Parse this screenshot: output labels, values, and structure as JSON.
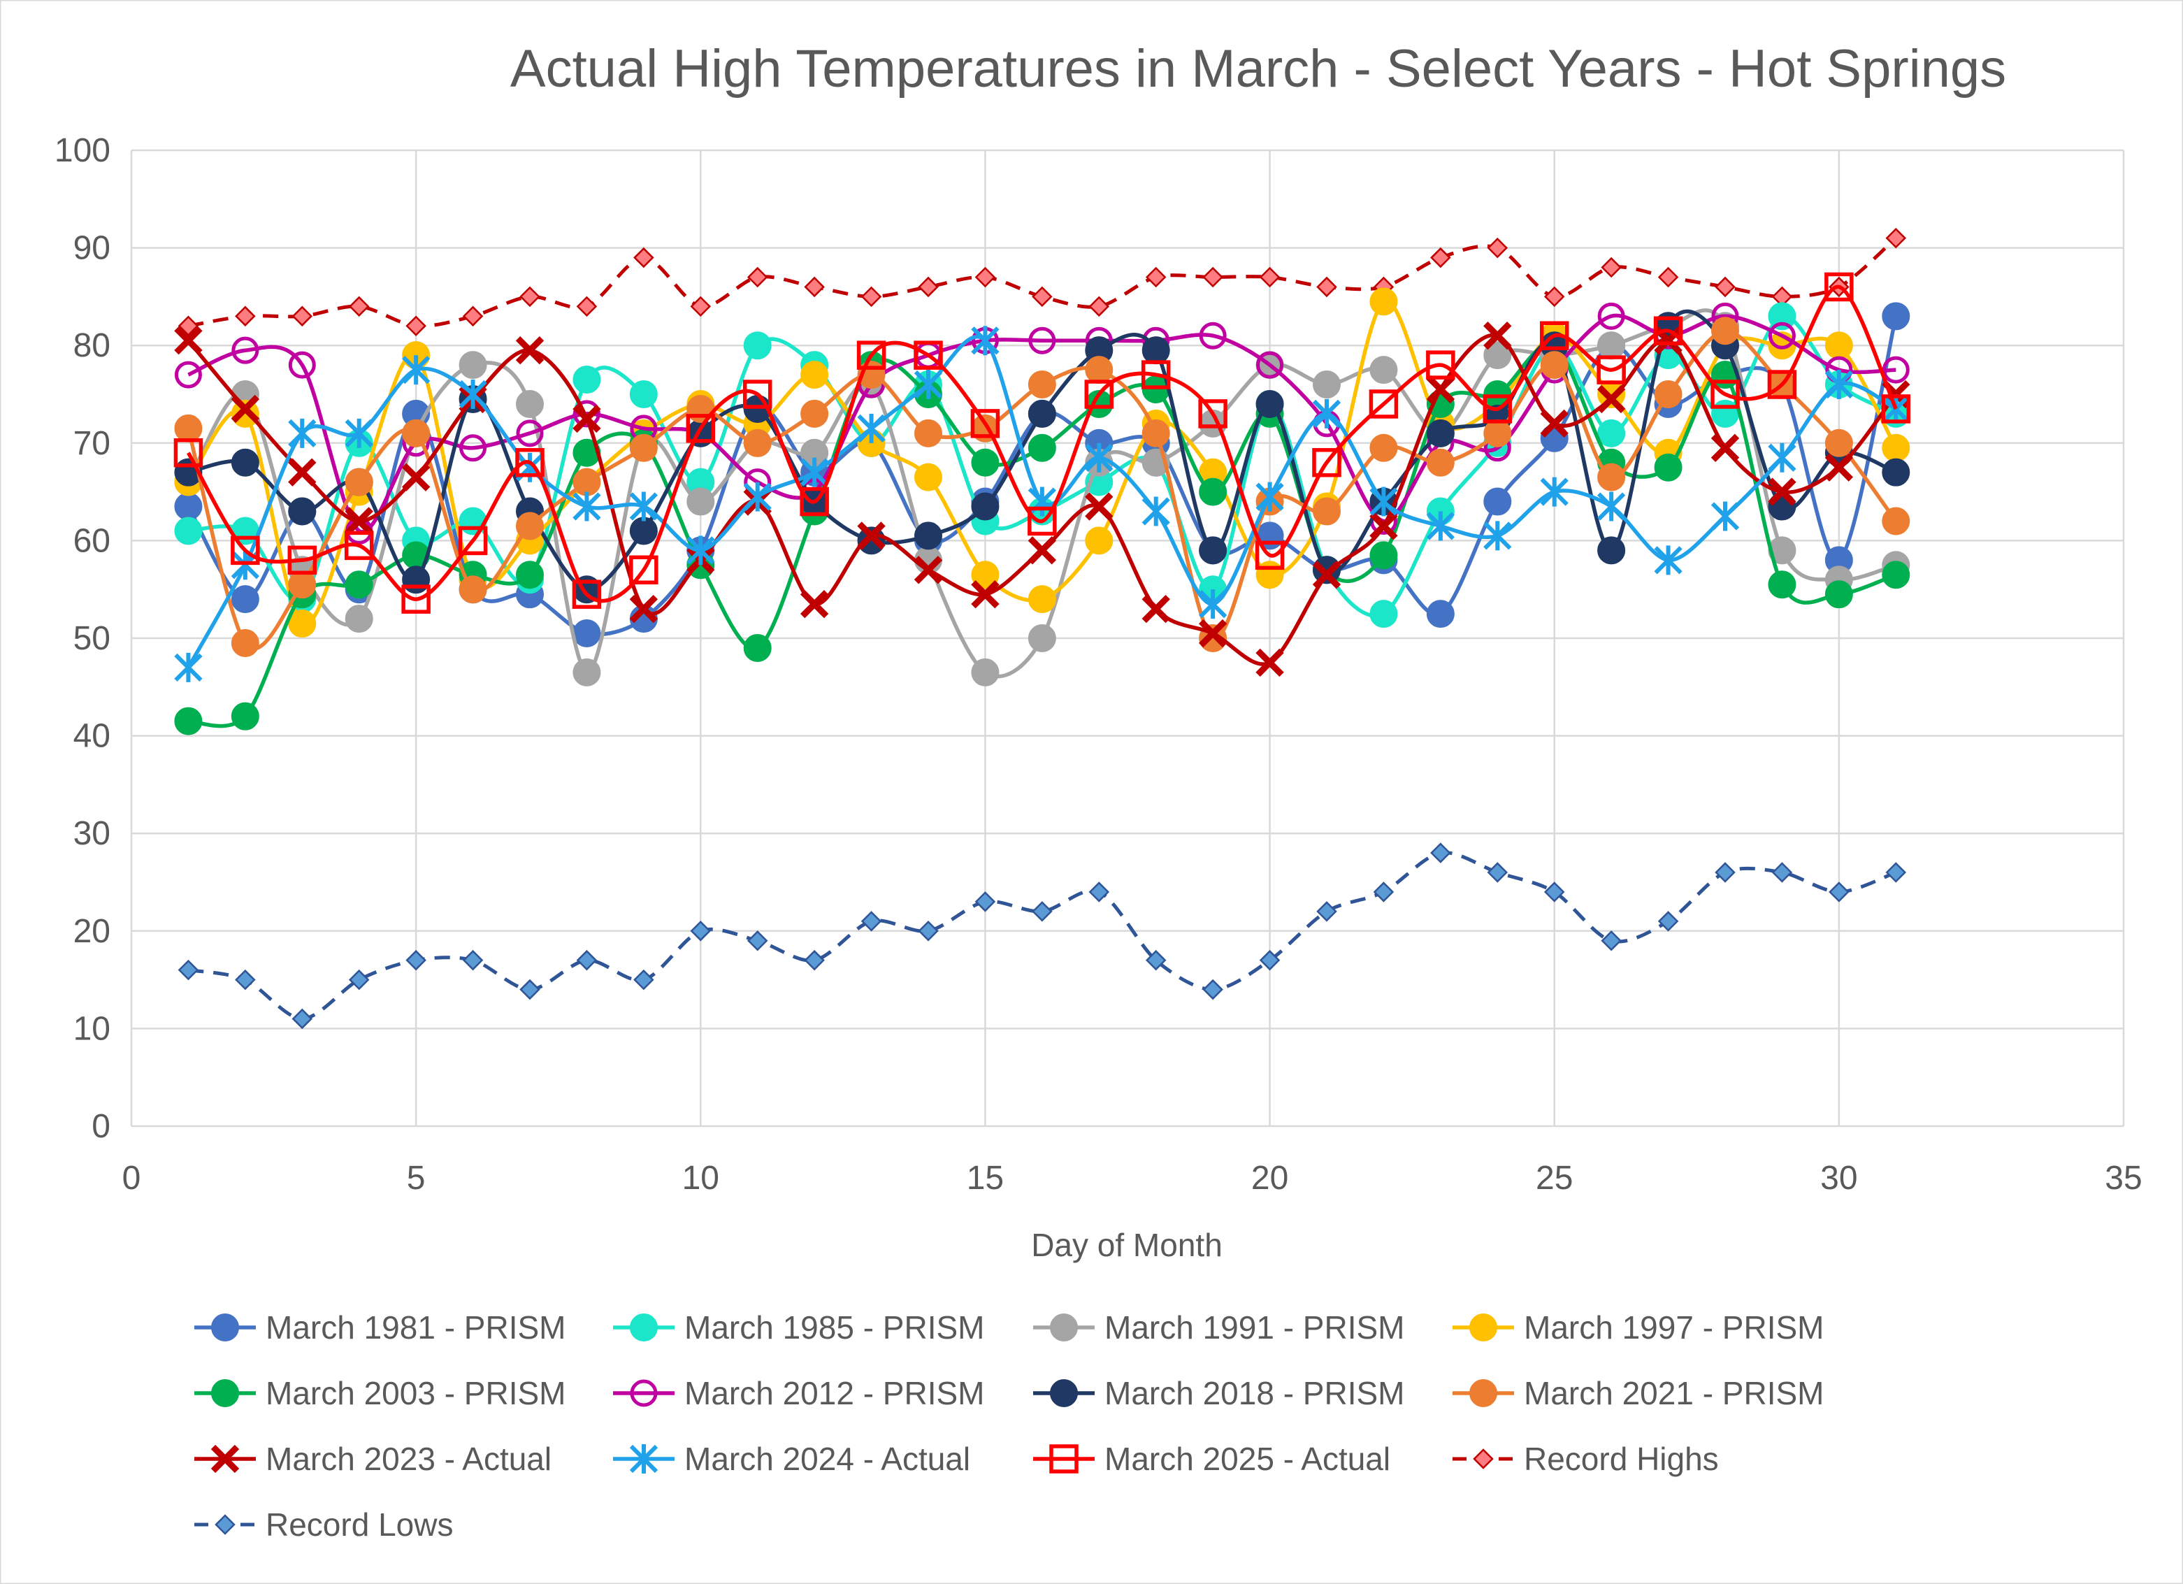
{
  "chart_data": {
    "type": "line",
    "title": "Actual High Temperatures in March - Select Years - Hot Springs",
    "xlabel": "Day of Month",
    "ylabel": "",
    "xlim": [
      0,
      35
    ],
    "ylim": [
      0,
      100
    ],
    "x_ticks": [
      "0",
      "5",
      "10",
      "15",
      "20",
      "25",
      "30",
      "35"
    ],
    "y_ticks": [
      "0",
      "10",
      "20",
      "30",
      "40",
      "50",
      "60",
      "70",
      "80",
      "90",
      "100"
    ],
    "x_tick_values": [
      0,
      5,
      10,
      15,
      20,
      25,
      30,
      35
    ],
    "y_tick_values": [
      0,
      10,
      20,
      30,
      40,
      50,
      60,
      70,
      80,
      90,
      100
    ],
    "grid": true,
    "legend_position": "bottom",
    "x": [
      1,
      2,
      3,
      4,
      5,
      6,
      7,
      8,
      9,
      10,
      11,
      12,
      13,
      14,
      15,
      16,
      17,
      18,
      19,
      20,
      21,
      22,
      23,
      24,
      25,
      26,
      27,
      28,
      29,
      30,
      31
    ],
    "series": [
      {
        "name": "March 1981 - PRISM",
        "color": "#4472C4",
        "marker": "circle",
        "line": "solid",
        "values": [
          63.5,
          54,
          63,
          55,
          73,
          55,
          54.5,
          50.5,
          52,
          59,
          73.5,
          67,
          70,
          60,
          64,
          73,
          70,
          70,
          59,
          60.5,
          57,
          58,
          52.5,
          64,
          70.5,
          80,
          74,
          77,
          76,
          58,
          83
        ]
      },
      {
        "name": "March 1985 - PRISM",
        "color": "#1CE6C9",
        "marker": "circle",
        "line": "solid",
        "values": [
          61,
          61,
          54,
          70,
          60,
          62,
          56,
          76.5,
          75,
          66,
          80,
          78,
          70,
          76,
          62,
          63,
          66,
          68,
          55,
          74,
          57,
          52.5,
          63,
          70,
          80,
          71,
          79,
          73,
          83,
          76,
          73
        ]
      },
      {
        "name": "March 1991 - PRISM",
        "color": "#A5A5A5",
        "marker": "circle",
        "line": "solid",
        "values": [
          66,
          75,
          57,
          52,
          71,
          78,
          74,
          46.5,
          70,
          64,
          70,
          69,
          76,
          58,
          46.5,
          50,
          68,
          68,
          72,
          78,
          76,
          77.5,
          71,
          79,
          79,
          80,
          82,
          82,
          59,
          56,
          57.5
        ]
      },
      {
        "name": "March 1997 - PRISM",
        "color": "#FFC000",
        "marker": "circle",
        "line": "solid",
        "values": [
          66,
          73,
          51.5,
          65,
          79,
          56,
          60,
          66,
          71,
          74,
          72,
          77,
          70,
          66.5,
          56.5,
          54,
          60,
          72,
          67,
          56.5,
          63.5,
          84.5,
          72,
          74,
          81,
          75,
          69,
          80,
          80,
          80,
          69.5
        ]
      },
      {
        "name": "March 2003 - PRISM",
        "color": "#00B050",
        "marker": "circle",
        "line": "solid",
        "values": [
          41.5,
          42,
          54.5,
          55.5,
          58.5,
          56.5,
          56.5,
          69,
          70,
          57.5,
          49,
          63,
          78,
          75,
          68,
          69.5,
          74,
          75.5,
          65,
          73,
          57,
          58.5,
          74,
          75,
          80,
          68,
          67.5,
          77,
          55.5,
          54.5,
          56.5
        ]
      },
      {
        "name": "March 2012 - PRISM",
        "color": "#C000A0",
        "marker": "circle-open",
        "line": "solid",
        "values": [
          77,
          79.5,
          78,
          61,
          70,
          69.5,
          71,
          73,
          71.5,
          71,
          66,
          65,
          76,
          79,
          80.5,
          80.5,
          80.5,
          80.5,
          81,
          78,
          72,
          62,
          70,
          69.5,
          77.5,
          83,
          81,
          83,
          81,
          77.5,
          77.5
        ]
      },
      {
        "name": "March 2018 - PRISM",
        "color": "#203864",
        "marker": "circle",
        "line": "solid",
        "values": [
          67,
          68,
          63,
          66,
          56,
          74.5,
          63,
          55,
          61,
          71,
          73.5,
          64,
          60,
          60.5,
          63.5,
          73,
          79.5,
          79.5,
          59,
          74,
          57,
          64,
          71,
          72.5,
          80,
          59,
          82,
          80,
          63.5,
          69,
          67
        ]
      },
      {
        "name": "March 2021 - PRISM",
        "color": "#ED7D31",
        "marker": "circle",
        "line": "solid",
        "values": [
          71.5,
          49.5,
          55.5,
          66,
          71,
          55,
          61.5,
          66,
          69.5,
          73.5,
          70,
          73,
          77,
          71,
          71.5,
          76,
          77.5,
          71,
          50,
          64,
          63,
          69.5,
          68,
          71,
          78,
          66.5,
          75,
          81.5,
          76,
          70,
          62
        ]
      },
      {
        "name": "March 2023 - Actual",
        "color": "#C00000",
        "marker": "x",
        "line": "solid",
        "values": [
          80.5,
          73.5,
          67,
          62,
          66.5,
          74.5,
          79.5,
          72.5,
          53,
          58,
          64,
          53.5,
          60.5,
          57,
          54.5,
          59,
          63.5,
          53,
          50.5,
          47.5,
          56.5,
          61.5,
          75.5,
          81,
          72,
          74.5,
          80.5,
          69.5,
          65,
          67.5,
          75
        ]
      },
      {
        "name": "March 2024 - Actual",
        "color": "#1FA2EA",
        "marker": "star",
        "line": "solid",
        "values": [
          47,
          57.5,
          71,
          71,
          77.5,
          75,
          67.5,
          63.5,
          63.5,
          59,
          64.5,
          67,
          71.5,
          76,
          80.5,
          64,
          68.5,
          63,
          53.5,
          64.5,
          73,
          64,
          61.5,
          60.5,
          65,
          63.5,
          58,
          62.5,
          68.5,
          76,
          73.5
        ]
      },
      {
        "name": "March 2025 - Actual",
        "color": "#FF0000",
        "marker": "square-open",
        "line": "solid",
        "values": [
          69,
          59,
          58,
          59.5,
          54,
          60,
          68,
          54.5,
          57,
          71.5,
          75,
          64,
          79,
          79,
          72,
          62,
          75,
          77,
          73,
          58.5,
          68,
          74,
          78,
          73.5,
          81,
          77.5,
          81.5,
          75,
          76,
          86,
          73.5
        ]
      },
      {
        "name": "Record Highs",
        "color": "#C00000",
        "marker": "diamond",
        "line": "dash",
        "values": [
          82,
          83,
          83,
          84,
          82,
          83,
          85,
          84,
          89,
          84,
          87,
          86,
          85,
          86,
          87,
          85,
          84,
          87,
          87,
          87,
          86,
          86,
          89,
          90,
          85,
          88,
          87,
          86,
          85,
          86,
          91
        ]
      },
      {
        "name": "Record Lows",
        "color": "#2F5597",
        "marker": "diamond",
        "line": "dash",
        "values": [
          16,
          15,
          11,
          15,
          17,
          17,
          14,
          17,
          15,
          20,
          19,
          17,
          21,
          20,
          23,
          22,
          24,
          17,
          14,
          17,
          22,
          24,
          28,
          26,
          24,
          19,
          21,
          26,
          26,
          24,
          26
        ]
      }
    ]
  }
}
